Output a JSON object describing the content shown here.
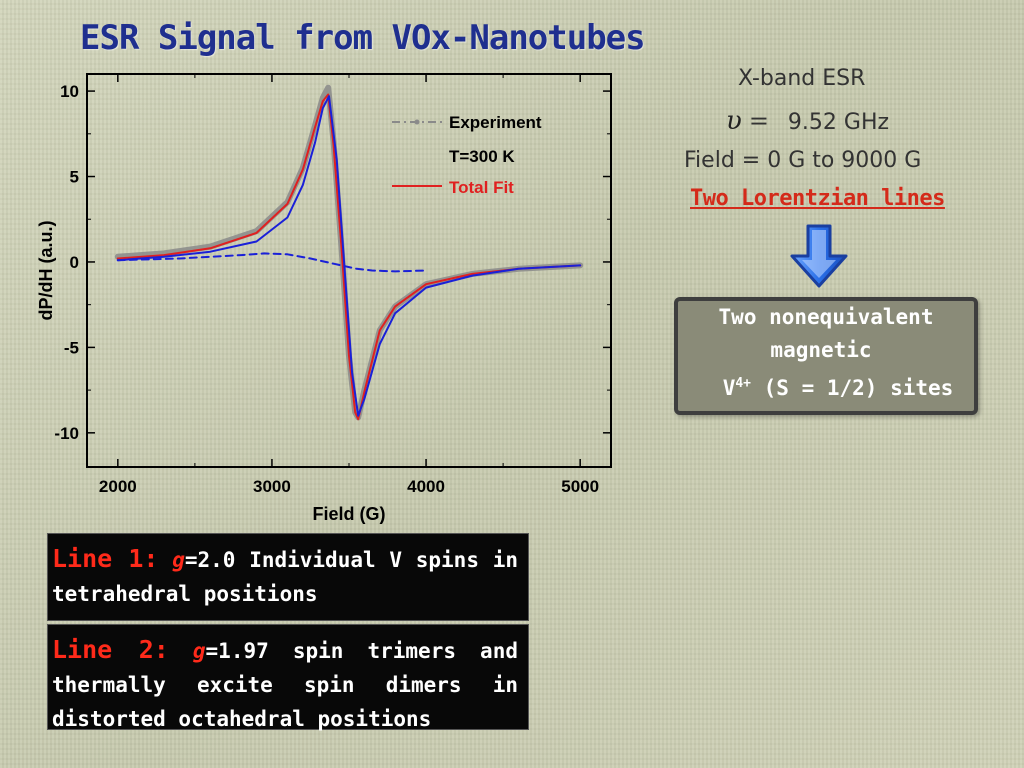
{
  "slide": {
    "title": "ESR Signal from VOx-Nanotubes"
  },
  "info": {
    "line1": "X-band ESR",
    "nu_symbol": "υ",
    "nu_eq": "=",
    "frequency": "9.52 GHz",
    "field": "Field = 0 G to 9000 G",
    "two_lines": "Two Lorentzian lines"
  },
  "conclusion": {
    "line1": "Two nonequivalent",
    "line2": "magnetic",
    "v": "V",
    "sup": "4+",
    "rest": " (S = 1/2)  sites"
  },
  "line_boxes": [
    {
      "head": "Line 1:",
      "g": "g",
      "text": "=2.0 Individual V spins in tetrahedral positions"
    },
    {
      "head": "Line 2:",
      "g": "g",
      "text": "=1.97 spin trimers and thermally excite spin dimers in distorted octahedral positions"
    }
  ],
  "colors": {
    "experiment": "#8a8a8a",
    "total_fit": "#e02020",
    "components": "#1a20d8",
    "arrow": "#2a6fe8"
  },
  "chart_data": {
    "type": "line",
    "xlabel": "Field (G)",
    "ylabel": "dP/dH (a.u.)",
    "xlim": [
      1800,
      5200
    ],
    "ylim": [
      -12,
      11
    ],
    "xticks": [
      2000,
      3000,
      4000,
      5000
    ],
    "yticks": [
      10,
      5,
      0,
      -5,
      -10
    ],
    "legend_position": "top-right",
    "legend": [
      {
        "label": "Experiment",
        "style": "dash-dot-gray"
      },
      {
        "label": "T=300 K",
        "style": "text"
      },
      {
        "label": "Total Fit",
        "style": "solid-red"
      }
    ],
    "series": [
      {
        "name": "Experiment",
        "x": [
          2000,
          2300,
          2600,
          2900,
          3100,
          3200,
          3280,
          3330,
          3365,
          3400,
          3450,
          3500,
          3540,
          3560,
          3600,
          3700,
          3800,
          4000,
          4300,
          4600,
          5000
        ],
        "y": [
          0.3,
          0.5,
          0.9,
          1.8,
          3.5,
          5.5,
          8.0,
          9.6,
          10.2,
          7.0,
          1.0,
          -5.5,
          -8.8,
          -9.1,
          -7.5,
          -4.0,
          -2.6,
          -1.3,
          -0.7,
          -0.4,
          -0.2
        ]
      },
      {
        "name": "Total Fit",
        "x": [
          2000,
          2300,
          2600,
          2900,
          3100,
          3200,
          3280,
          3330,
          3365,
          3400,
          3450,
          3500,
          3540,
          3560,
          3600,
          3700,
          3800,
          4000,
          4300,
          4600,
          5000
        ],
        "y": [
          0.2,
          0.4,
          0.8,
          1.7,
          3.4,
          5.4,
          7.9,
          9.4,
          9.8,
          6.8,
          1.0,
          -5.5,
          -8.8,
          -9.2,
          -7.6,
          -4.0,
          -2.6,
          -1.3,
          -0.7,
          -0.4,
          -0.2
        ]
      },
      {
        "name": "Line 1",
        "x": [
          2000,
          2400,
          2800,
          2950,
          3100,
          3250,
          3400,
          3500,
          3550,
          3650,
          3800,
          4000
        ],
        "y": [
          0.1,
          0.2,
          0.4,
          0.5,
          0.45,
          0.2,
          -0.1,
          -0.3,
          -0.4,
          -0.5,
          -0.55,
          -0.5
        ]
      },
      {
        "name": "Line 2",
        "x": [
          2000,
          2300,
          2600,
          2900,
          3100,
          3200,
          3280,
          3330,
          3370,
          3420,
          3480,
          3520,
          3560,
          3600,
          3700,
          3800,
          4000,
          4300,
          4600,
          5000
        ],
        "y": [
          0.1,
          0.3,
          0.6,
          1.2,
          2.6,
          4.5,
          7.0,
          9.0,
          9.7,
          6.0,
          -1.5,
          -6.5,
          -9.0,
          -8.0,
          -4.8,
          -3.0,
          -1.5,
          -0.8,
          -0.4,
          -0.2
        ]
      }
    ]
  }
}
